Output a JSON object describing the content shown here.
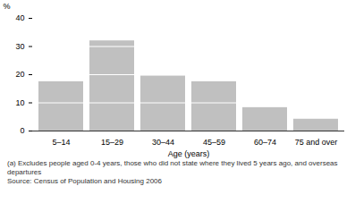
{
  "chart_data": {
    "type": "bar",
    "y_label": "%",
    "x_label": "Age (years)",
    "categories": [
      "5–14",
      "15–29",
      "30–44",
      "45–59",
      "60–74",
      "75 and over"
    ],
    "values": [
      17.5,
      32,
      19.5,
      17.5,
      8.3,
      4.2
    ],
    "color": "#c0c0c0",
    "ylim": [
      0,
      40
    ],
    "yticks": [
      0,
      10,
      20,
      30,
      40
    ],
    "grid": true,
    "notes": [
      "(a) Excludes people aged 0-4 years, those who did not state where they lived 5 years ago, and overseas departures",
      "Source: Census of Population and Housing 2006"
    ]
  }
}
